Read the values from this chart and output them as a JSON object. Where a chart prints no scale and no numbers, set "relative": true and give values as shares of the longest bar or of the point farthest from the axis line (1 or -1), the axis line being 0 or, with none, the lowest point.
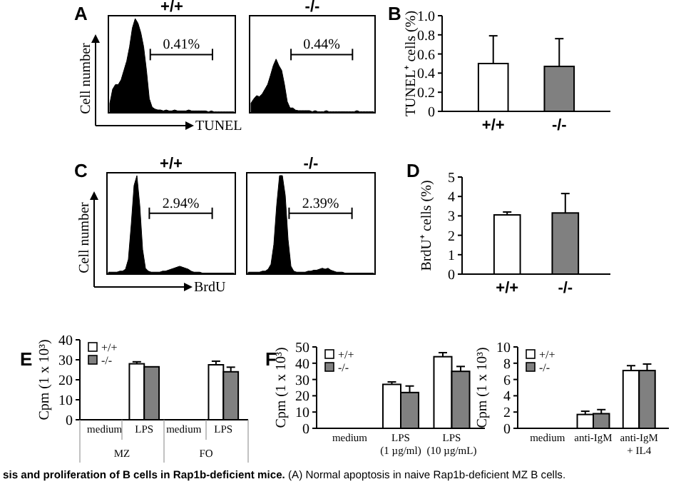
{
  "chart_data": [
    {
      "type": "area",
      "relative": true,
      "title": "+/+",
      "xlabel": "TUNEL",
      "ylabel": "Cell number",
      "annotations": [
        "0.41%",
        "A"
      ],
      "color": "#000000",
      "categories": [
        null,
        null,
        null,
        null,
        null,
        null,
        null,
        null,
        null,
        null,
        null,
        null,
        null,
        null,
        null,
        null,
        null,
        null,
        null,
        null,
        null,
        null,
        null,
        null,
        null,
        null,
        null,
        null,
        null,
        null,
        null,
        null,
        null,
        null,
        null,
        null,
        null,
        null,
        null,
        null,
        null,
        null,
        null,
        null,
        null
      ],
      "values": [
        0.1,
        0.25,
        0.3,
        0.3,
        0.35,
        0.45,
        0.55,
        0.7,
        0.9,
        1.0,
        0.95,
        0.85,
        0.7,
        0.45,
        0.15,
        0.06,
        0.04,
        0.03,
        0.03,
        0.02,
        0.03,
        0.02,
        0.02,
        0.03,
        0.02,
        0.02,
        0.02,
        0.02,
        0.03,
        0.02,
        0.02,
        0.02,
        0.02,
        0.02,
        0.02,
        0.01,
        0.02,
        0.01,
        0.01,
        0.01,
        0.01,
        0.01,
        0.01,
        0.01,
        0.01
      ]
    },
    {
      "type": "area",
      "relative": true,
      "title": "-/-",
      "annotations": [
        "0.44%"
      ],
      "color": "#000000",
      "categories": [
        null,
        null,
        null,
        null,
        null,
        null,
        null,
        null,
        null,
        null,
        null,
        null,
        null,
        null,
        null,
        null,
        null,
        null,
        null,
        null,
        null,
        null,
        null,
        null,
        null,
        null,
        null,
        null,
        null,
        null,
        null,
        null,
        null,
        null,
        null,
        null,
        null,
        null,
        null,
        null,
        null,
        null,
        null,
        null,
        null
      ],
      "values": [
        0.18,
        0.26,
        0.32,
        0.3,
        0.35,
        0.44,
        0.53,
        0.7,
        0.88,
        1.0,
        0.88,
        0.79,
        0.53,
        0.21,
        0.09,
        0.09,
        0.05,
        0.04,
        0.04,
        0.04,
        0.04,
        0.04,
        0.02,
        0.04,
        0.02,
        0.02,
        0.02,
        0.04,
        0.02,
        0.02,
        0.02,
        0.02,
        0.02,
        0.02,
        0.02,
        0.02,
        0.02,
        0.02,
        0.04,
        0.02,
        0.02,
        0.02,
        0.02,
        0.02,
        0.02
      ]
    },
    {
      "type": "bar",
      "ylabel": "TUNEL⁺ cells (%)",
      "annotations": [
        "B"
      ],
      "categories": [
        "+/+",
        "-/-"
      ],
      "values": [
        0.5,
        0.47
      ],
      "colors": [
        "#ffffff",
        "#808080"
      ],
      "errors": [
        [
          0.5,
          0.79
        ],
        [
          0.47,
          0.76
        ]
      ],
      "ylim": [
        0,
        1
      ],
      "yticks": [
        0,
        {
          "value": 0.2,
          "label": "0.2"
        },
        {
          "value": 0.4,
          "label": "0.4"
        },
        {
          "value": 0.6,
          "label": "0.6"
        },
        {
          "value": 0.8,
          "label": "0.8"
        },
        {
          "value": 1,
          "label": "1.0"
        }
      ]
    },
    {
      "type": "area",
      "relative": true,
      "title": "+/+",
      "xlabel": "BrdU",
      "ylabel": "Cell number",
      "annotations": [
        "2.94%",
        "C"
      ],
      "color": "#000000",
      "categories": [
        null,
        null,
        null,
        null,
        null,
        null,
        null,
        null,
        null,
        null,
        null,
        null,
        null,
        null,
        null,
        null,
        null,
        null,
        null,
        null,
        null,
        null,
        null,
        null,
        null,
        null,
        null,
        null,
        null,
        null,
        null,
        null,
        null,
        null,
        null,
        null,
        null,
        null,
        null,
        null,
        null,
        null,
        null,
        null,
        null
      ],
      "values": [
        0.02,
        0.02,
        0.02,
        0.02,
        0.03,
        0.03,
        0.05,
        0.15,
        0.5,
        0.9,
        1.0,
        0.7,
        0.25,
        0.06,
        0.03,
        0.02,
        0.02,
        0.02,
        0.02,
        0.03,
        0.03,
        0.04,
        0.05,
        0.06,
        0.07,
        0.08,
        0.07,
        0.06,
        0.05,
        0.03,
        0.02,
        0.02,
        0.02,
        0.01,
        0.01,
        0.01,
        0.01,
        0.01,
        0.01,
        0.01,
        0.01,
        0.01,
        0.01,
        0.01,
        0.01
      ]
    },
    {
      "type": "area",
      "relative": true,
      "title": "-/-",
      "annotations": [
        "2.39%"
      ],
      "color": "#000000",
      "categories": [
        null,
        null,
        null,
        null,
        null,
        null,
        null,
        null,
        null,
        null,
        null,
        null,
        null,
        null,
        null,
        null,
        null,
        null,
        null,
        null,
        null,
        null,
        null,
        null,
        null,
        null,
        null,
        null,
        null,
        null,
        null,
        null,
        null,
        null,
        null,
        null,
        null,
        null,
        null,
        null,
        null,
        null,
        null,
        null,
        null
      ],
      "values": [
        0.02,
        0.02,
        0.02,
        0.02,
        0.02,
        0.03,
        0.03,
        0.05,
        0.1,
        0.3,
        0.7,
        1.0,
        1.0,
        0.8,
        0.35,
        0.08,
        0.03,
        0.02,
        0.02,
        0.02,
        0.02,
        0.03,
        0.03,
        0.04,
        0.04,
        0.05,
        0.06,
        0.05,
        0.06,
        0.04,
        0.03,
        0.02,
        0.02,
        0.02,
        0.01,
        0.01,
        0.01,
        0.01,
        0.01,
        0.01,
        0.01,
        0.01,
        0.01,
        0.01,
        0.01
      ]
    },
    {
      "type": "bar",
      "ylabel": "BrdU⁺ cells (%)",
      "annotations": [
        "D"
      ],
      "categories": [
        "+/+",
        "-/-"
      ],
      "values": [
        3.05,
        3.15
      ],
      "colors": [
        "#ffffff",
        "#808080"
      ],
      "errors": [
        [
          3.05,
          3.2
        ],
        [
          3.15,
          4.15
        ]
      ],
      "ylim": [
        0,
        5
      ],
      "yticks": [
        0,
        1,
        2,
        3,
        4,
        5
      ]
    },
    {
      "type": "bar",
      "ylabel": "Cpm (1 x 10³)",
      "annotations": [
        "E",
        "MZ",
        "FO"
      ],
      "legend": "top left",
      "categories": [
        "medium",
        "LPS",
        "medium",
        "LPS"
      ],
      "ylim": [
        0,
        40
      ],
      "yticks": [
        0,
        10,
        20,
        30,
        40
      ],
      "series": [
        {
          "name": "+/+",
          "color": "#ffffff",
          "values": [
            0,
            28,
            0,
            27.5
          ],
          "errors": [
            null,
            [
              28,
              29
            ],
            null,
            [
              27.5,
              29.3
            ]
          ]
        },
        {
          "name": "-/-",
          "color": "#808080",
          "values": [
            0,
            26.5,
            0,
            24
          ],
          "errors": [
            null,
            null,
            null,
            [
              24,
              26.3
            ]
          ]
        }
      ]
    },
    {
      "type": "bar",
      "ylabel": "Cpm (1 x 10³)",
      "annotations": [
        "F"
      ],
      "legend": "top left",
      "categories": [
        "medium",
        "LPS\n(1 µg/ml)",
        "LPS\n(10 µg/mL)"
      ],
      "ylim": [
        0,
        50
      ],
      "yticks": [
        0,
        10,
        20,
        30,
        40,
        50
      ],
      "series": [
        {
          "name": "+/+",
          "color": "#ffffff",
          "values": [
            0,
            27,
            44
          ],
          "errors": [
            null,
            [
              27,
              28.5
            ],
            [
              44,
              46.5
            ]
          ]
        },
        {
          "name": "-/-",
          "color": "#808080",
          "values": [
            0,
            22,
            35
          ],
          "errors": [
            null,
            [
              22,
              26
            ],
            [
              35,
              38
            ]
          ]
        }
      ]
    },
    {
      "type": "bar",
      "ylabel": "Cpm (1 x 10³)",
      "legend": "top left",
      "categories": [
        "medium",
        "anti-IgM",
        "anti-IgM\n+ IL4"
      ],
      "ylim": [
        0,
        10
      ],
      "yticks": [
        0,
        2,
        4,
        6,
        8,
        10
      ],
      "series": [
        {
          "name": "+/+",
          "color": "#ffffff",
          "values": [
            0,
            1.7,
            7.1
          ],
          "errors": [
            null,
            [
              1.7,
              2.1
            ],
            [
              7.1,
              7.7
            ]
          ]
        },
        {
          "name": "-/-",
          "color": "#808080",
          "values": [
            0,
            1.8,
            7.1
          ],
          "errors": [
            null,
            [
              1.8,
              2.3
            ],
            [
              7.1,
              7.9
            ]
          ]
        }
      ]
    },
    {
      "type": "other",
      "annotations": [
        "sis and proliferation of B cells in Rap1b-deficient mice.",
        "(A) Normal apoptosis in naive Rap1b-deficient MZ B cells."
      ]
    }
  ]
}
